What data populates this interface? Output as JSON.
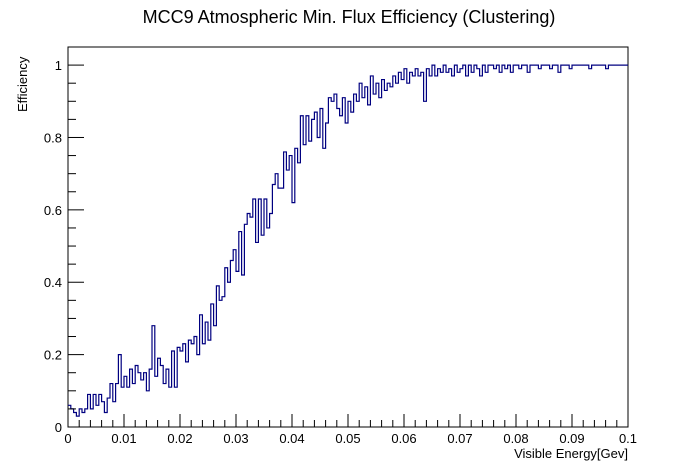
{
  "chart_data": {
    "type": "line",
    "style": "step-histogram",
    "title": "MCC9 Atmospheric Min. Flux Efficiency (Clustering)",
    "xlabel": "Visible Energy[Gev]",
    "ylabel": "Efficiency",
    "xlim": [
      0,
      0.1
    ],
    "ylim": [
      0,
      1.05
    ],
    "x_ticks": [
      0,
      0.01,
      0.02,
      0.03,
      0.04,
      0.05,
      0.06,
      0.07,
      0.08,
      0.09,
      0.1
    ],
    "x_tick_labels": [
      "0",
      "0.01",
      "0.02",
      "0.03",
      "0.04",
      "0.05",
      "0.06",
      "0.07",
      "0.08",
      "0.09",
      "0.1"
    ],
    "y_ticks": [
      0,
      0.2,
      0.4,
      0.6,
      0.8,
      1.0
    ],
    "y_tick_labels": [
      "0",
      "0.2",
      "0.4",
      "0.6",
      "0.8",
      "1"
    ],
    "grid": false,
    "legend": "none",
    "line_color": "#000080",
    "bin_width": 0.0005,
    "series": [
      {
        "values": [
          0.06,
          0.05,
          0.04,
          0.03,
          0.05,
          0.04,
          0.05,
          0.09,
          0.05,
          0.09,
          0.06,
          0.09,
          0.07,
          0.04,
          0.08,
          0.12,
          0.07,
          0.12,
          0.2,
          0.11,
          0.14,
          0.11,
          0.16,
          0.12,
          0.17,
          0.15,
          0.13,
          0.15,
          0.1,
          0.16,
          0.28,
          0.14,
          0.19,
          0.17,
          0.12,
          0.16,
          0.11,
          0.21,
          0.11,
          0.22,
          0.21,
          0.23,
          0.18,
          0.24,
          0.23,
          0.25,
          0.2,
          0.31,
          0.23,
          0.29,
          0.24,
          0.34,
          0.28,
          0.39,
          0.35,
          0.36,
          0.44,
          0.4,
          0.46,
          0.49,
          0.43,
          0.54,
          0.42,
          0.56,
          0.59,
          0.58,
          0.63,
          0.51,
          0.63,
          0.53,
          0.63,
          0.55,
          0.59,
          0.67,
          0.7,
          0.66,
          0.66,
          0.76,
          0.71,
          0.75,
          0.62,
          0.77,
          0.73,
          0.86,
          0.78,
          0.86,
          0.79,
          0.85,
          0.87,
          0.8,
          0.88,
          0.77,
          0.84,
          0.91,
          0.9,
          0.92,
          0.88,
          0.86,
          0.91,
          0.84,
          0.9,
          0.87,
          0.92,
          0.9,
          0.95,
          0.91,
          0.94,
          0.89,
          0.97,
          0.92,
          0.95,
          0.91,
          0.96,
          0.93,
          0.95,
          0.94,
          0.97,
          0.95,
          0.98,
          0.96,
          0.99,
          0.95,
          0.98,
          0.97,
          0.99,
          0.97,
          0.98,
          0.9,
          0.99,
          0.97,
          1.0,
          0.97,
          0.99,
          0.98,
          1.0,
          0.98,
          0.99,
          0.97,
          1.0,
          0.98,
          0.99,
          1.0,
          0.97,
          1.0,
          0.98,
          1.0,
          0.99,
          0.97,
          1.0,
          0.98,
          1.0,
          1.0,
          0.99,
          1.0,
          0.98,
          1.0,
          0.99,
          1.0,
          0.98,
          1.0,
          1.0,
          0.99,
          1.0,
          1.0,
          0.98,
          1.0,
          1.0,
          1.0,
          0.99,
          1.0,
          1.0,
          1.0,
          0.99,
          1.0,
          1.0,
          0.98,
          1.0,
          1.0,
          1.0,
          0.99,
          1.0,
          1.0,
          1.0,
          1.0,
          1.0,
          1.0,
          0.99,
          1.0,
          1.0,
          1.0,
          1.0,
          1.0,
          0.99,
          1.0,
          1.0,
          1.0,
          1.0,
          1.0,
          1.0,
          1.0
        ]
      }
    ]
  }
}
